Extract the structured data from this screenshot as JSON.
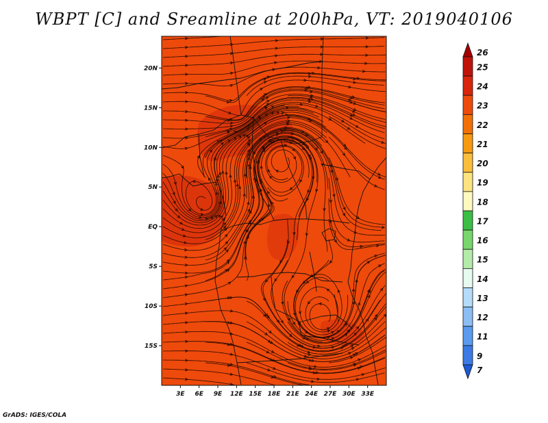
{
  "title": "WBPT [C] and Sreamline at 200hPa, VT: 2019040106",
  "credit": "GrADS: IGES/COLA",
  "map": {
    "lon_range": [
      0,
      36
    ],
    "lat_range": [
      -20,
      24
    ],
    "lat_ticks": [
      {
        "value": 20,
        "label": "20N"
      },
      {
        "value": 15,
        "label": "15N"
      },
      {
        "value": 10,
        "label": "10N"
      },
      {
        "value": 5,
        "label": "5N"
      },
      {
        "value": 0,
        "label": "EQ"
      },
      {
        "value": -5,
        "label": "5S"
      },
      {
        "value": -10,
        "label": "10S"
      },
      {
        "value": -15,
        "label": "15S"
      }
    ],
    "lon_ticks": [
      {
        "value": 3,
        "label": "3E"
      },
      {
        "value": 6,
        "label": "6E"
      },
      {
        "value": 9,
        "label": "9E"
      },
      {
        "value": 12,
        "label": "12E"
      },
      {
        "value": 15,
        "label": "15E"
      },
      {
        "value": 18,
        "label": "18E"
      },
      {
        "value": 21,
        "label": "21E"
      },
      {
        "value": 24,
        "label": "24E"
      },
      {
        "value": 27,
        "label": "27E"
      },
      {
        "value": 30,
        "label": "30E"
      },
      {
        "value": 33,
        "label": "33E"
      }
    ],
    "background_color": "#ee4a0b",
    "colorbar": {
      "levels": [
        {
          "label": "26",
          "color": "#a50000"
        },
        {
          "label": "25",
          "color": "#c0140a"
        },
        {
          "label": "24",
          "color": "#d9250c"
        },
        {
          "label": "23",
          "color": "#ee4a0b"
        },
        {
          "label": "22",
          "color": "#f27006"
        },
        {
          "label": "21",
          "color": "#f79a10"
        },
        {
          "label": "20",
          "color": "#fbbe3c"
        },
        {
          "label": "19",
          "color": "#fde37f"
        },
        {
          "label": "18",
          "color": "#fef9bf"
        },
        {
          "label": "17",
          "color": "#3cbe46"
        },
        {
          "label": "16",
          "color": "#78d66c"
        },
        {
          "label": "15",
          "color": "#b4ebaa"
        },
        {
          "label": "14",
          "color": "#e6faf0"
        },
        {
          "label": "13",
          "color": "#b4dcfa"
        },
        {
          "label": "12",
          "color": "#8cbef5"
        },
        {
          "label": "11",
          "color": "#5a9bf0"
        },
        {
          "label": "9",
          "color": "#3c7ae6"
        },
        {
          "label": "7",
          "color": "#1e5ad2"
        }
      ]
    }
  }
}
